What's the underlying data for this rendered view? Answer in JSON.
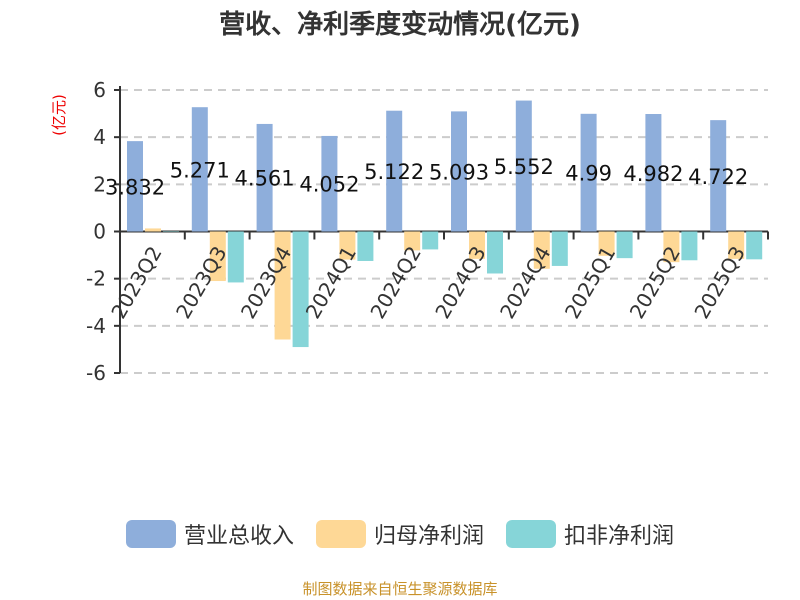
{
  "title": "营收、净利季度变动情况(亿元)",
  "footer": "制图数据来自恒生聚源数据库",
  "chart_data": {
    "type": "bar",
    "title": "营收、净利季度变动情况(亿元)",
    "ylabel": "(亿元)",
    "ylim": [
      -6,
      6
    ],
    "yticks": [
      -6,
      -4,
      -2,
      0,
      2,
      4,
      6
    ],
    "grid": true,
    "legend": "bottom",
    "categories": [
      "2023Q2",
      "2023Q3",
      "2023Q4",
      "2024Q1",
      "2024Q2",
      "2024Q3",
      "2024Q4",
      "2025Q1",
      "2025Q2",
      "2025Q3"
    ],
    "series": [
      {
        "name": "营业总收入",
        "color": "#8eaedb",
        "values": [
          3.832,
          5.271,
          4.561,
          4.052,
          5.122,
          5.093,
          5.552,
          4.99,
          4.982,
          4.722
        ],
        "labels": [
          "3.832",
          "5.271",
          "4.561",
          "4.052",
          "5.122",
          "5.093",
          "5.552",
          "4.99",
          "4.982",
          "4.722"
        ]
      },
      {
        "name": "归母净利润",
        "color": "#fed896",
        "values": [
          0.13,
          -2.1,
          -4.58,
          -1.19,
          -0.8,
          -1.16,
          -1.58,
          -1.03,
          -1.3,
          -1.16
        ]
      },
      {
        "name": "扣非净利润",
        "color": "#86d5d8",
        "values": [
          -0.02,
          -2.16,
          -4.9,
          -1.25,
          -0.76,
          -1.78,
          -1.46,
          -1.13,
          -1.22,
          -1.18
        ]
      }
    ]
  }
}
